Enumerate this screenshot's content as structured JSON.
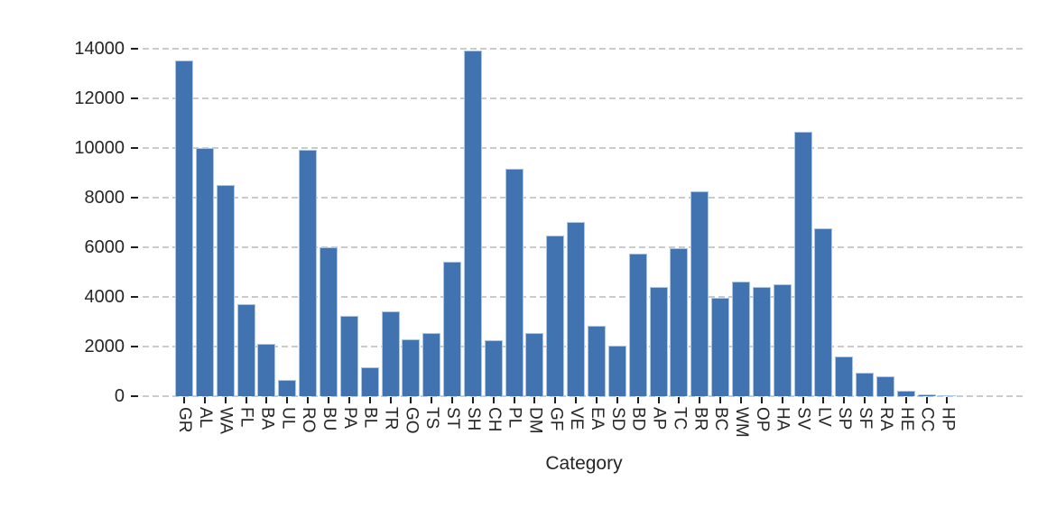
{
  "chart_data": {
    "type": "bar",
    "title": "",
    "xlabel": "Category",
    "ylabel": "",
    "ylim": [
      0,
      14000
    ],
    "yticks": [
      0,
      2000,
      4000,
      6000,
      8000,
      10000,
      12000,
      14000
    ],
    "grid": "dashed-horizontal",
    "legend": "none",
    "bar_color": "#4173b0",
    "bar_edge_color": "#a9c7e4",
    "gridline_color": "#cbcbcb",
    "tick_color": "#1f1f1f",
    "text_color": "#262626",
    "background_color": "#ffffff",
    "categories": [
      "GR",
      "AL",
      "WA",
      "FL",
      "BA",
      "UL",
      "RO",
      "BU",
      "PA",
      "BL",
      "TR",
      "GO",
      "TS",
      "ST",
      "SH",
      "CH",
      "PL",
      "DM",
      "GF",
      "VE",
      "EA",
      "SD",
      "BD",
      "AP",
      "TC",
      "BR",
      "BC",
      "WM",
      "OP",
      "HA",
      "SV",
      "LV",
      "SP",
      "SF",
      "RA",
      "HE",
      "CC",
      "HP"
    ],
    "values": [
      13500,
      10000,
      8500,
      3700,
      2100,
      650,
      9900,
      6000,
      3250,
      1150,
      3400,
      2300,
      2550,
      5400,
      13900,
      2250,
      9150,
      2550,
      6450,
      7000,
      2850,
      2050,
      5750,
      4400,
      5950,
      8250,
      3950,
      4600,
      4400,
      4500,
      10650,
      6750,
      1600,
      950,
      800,
      220,
      90,
      40
    ]
  }
}
